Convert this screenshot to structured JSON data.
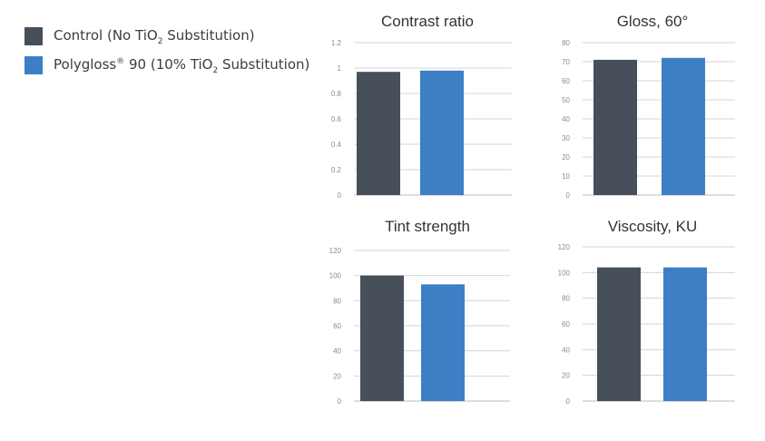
{
  "legend": {
    "items": [
      {
        "text_before": "Control (No TiO",
        "sub": "2",
        "sup": "",
        "text_after": " Substitution)",
        "color": "#474f5a"
      },
      {
        "text_before": "Polygloss",
        "sup": "®",
        "text_mid": " 90 (10% TiO",
        "sub": "2",
        "text_after": " Substitution)",
        "color": "#3d7fc4"
      }
    ]
  },
  "chart_data": [
    {
      "type": "bar",
      "title": "Contrast ratio",
      "categories": [
        "Control (No TiO2 Substitution)",
        "Polygloss® 90 (10% TiO2 Substitution)"
      ],
      "values": [
        0.97,
        0.98
      ],
      "ylim": [
        0,
        1.2
      ],
      "yticks": [
        "0",
        "0.2",
        "0.4",
        "0.6",
        "0.8",
        "1",
        "1.2"
      ],
      "grid": true,
      "colors": [
        "#474f5a",
        "#3d7fc4"
      ]
    },
    {
      "type": "bar",
      "title": "Gloss, 60°",
      "categories": [
        "Control (No TiO2 Substitution)",
        "Polygloss® 90 (10% TiO2 Substitution)"
      ],
      "values": [
        71,
        72
      ],
      "ylim": [
        0,
        80
      ],
      "yticks": [
        "0",
        "10",
        "20",
        "30",
        "40",
        "50",
        "60",
        "70",
        "80"
      ],
      "grid": true,
      "colors": [
        "#474f5a",
        "#3d7fc4"
      ]
    },
    {
      "type": "bar",
      "title": "Tint strength",
      "categories": [
        "Control (No TiO2 Substitution)",
        "Polygloss® 90 (10% TiO2 Substitution)"
      ],
      "values": [
        100,
        93
      ],
      "ylim": [
        0,
        120
      ],
      "yticks": [
        "0",
        "20",
        "40",
        "60",
        "80",
        "100",
        "120"
      ],
      "grid": true,
      "colors": [
        "#474f5a",
        "#3d7fc4"
      ]
    },
    {
      "type": "bar",
      "title": "Viscosity, KU",
      "categories": [
        "Control (No TiO2 Substitution)",
        "Polygloss® 90 (10% TiO2 Substitution)"
      ],
      "values": [
        104,
        104
      ],
      "ylim": [
        0,
        120
      ],
      "yticks": [
        "0",
        "20",
        "40",
        "60",
        "80",
        "100",
        "120"
      ],
      "grid": true,
      "colors": [
        "#474f5a",
        "#3d7fc4"
      ]
    }
  ]
}
